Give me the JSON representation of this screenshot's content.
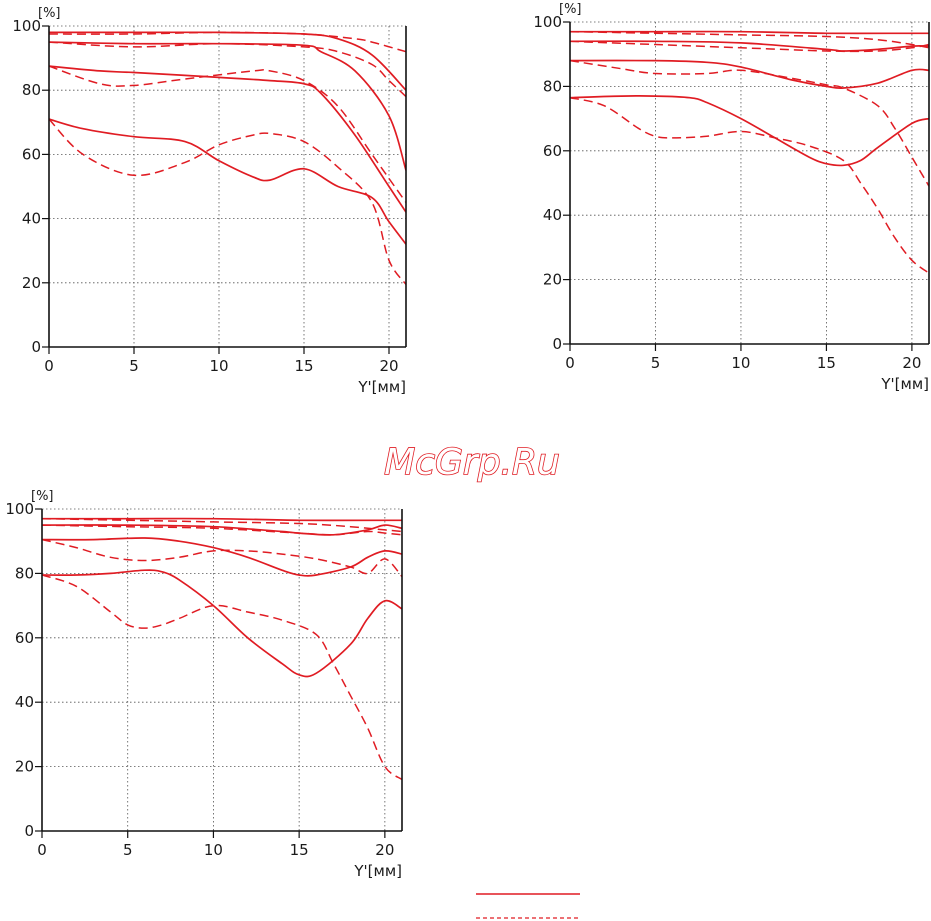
{
  "watermark": "McGrp.Ru",
  "colors": {
    "curve": "#e01c23",
    "axis": "#111111",
    "grid": "#555555"
  },
  "chart_data": [
    {
      "type": "line",
      "ylabel": "[%]",
      "xlabel": "Y'[мм]",
      "xlim": [
        0,
        21
      ],
      "ylim": [
        0,
        100
      ],
      "xticks": [
        0,
        5,
        10,
        15,
        20
      ],
      "yticks": [
        0,
        20,
        40,
        60,
        80,
        100
      ],
      "grid": true,
      "series": [
        {
          "style": "solid",
          "x": [
            0,
            5,
            10,
            15,
            17,
            19,
            21
          ],
          "y": [
            98,
            98,
            98,
            97.5,
            96,
            91,
            80
          ]
        },
        {
          "style": "dashed",
          "x": [
            0,
            5,
            10,
            15,
            18,
            19,
            21
          ],
          "y": [
            97.5,
            97.5,
            98,
            97.5,
            96,
            95,
            92
          ]
        },
        {
          "style": "solid",
          "x": [
            0,
            5,
            10,
            15,
            16,
            18,
            20,
            21
          ],
          "y": [
            95,
            94.5,
            94.5,
            94,
            92,
            86,
            72,
            55
          ]
        },
        {
          "style": "dashed",
          "x": [
            0,
            5,
            10,
            15,
            17,
            19,
            20,
            21
          ],
          "y": [
            95,
            93.5,
            94.5,
            93.5,
            92,
            88,
            83,
            78
          ]
        },
        {
          "style": "solid",
          "x": [
            0,
            3,
            5,
            10,
            13,
            15,
            16,
            18,
            20,
            21
          ],
          "y": [
            87.5,
            86,
            85.5,
            84,
            83,
            82,
            79,
            66,
            50,
            42
          ]
        },
        {
          "style": "dashed",
          "x": [
            0,
            3,
            5,
            8,
            12,
            13,
            15,
            17,
            19,
            21
          ],
          "y": [
            87.5,
            82,
            81.5,
            83.5,
            86,
            86,
            83,
            75,
            60,
            45
          ]
        },
        {
          "style": "solid",
          "x": [
            0,
            2,
            5,
            8,
            10,
            12,
            13,
            15,
            17,
            19,
            20,
            21
          ],
          "y": [
            71,
            68,
            65.5,
            64,
            58,
            53,
            52,
            55.5,
            50,
            46.5,
            39,
            32
          ]
        },
        {
          "style": "dashed",
          "x": [
            0,
            2,
            5,
            8,
            10,
            12,
            13,
            15,
            17,
            19,
            20,
            21
          ],
          "y": [
            71,
            60,
            53.5,
            57.5,
            63,
            66,
            66.5,
            64,
            56,
            45,
            27,
            19.5
          ]
        }
      ]
    },
    {
      "type": "line",
      "ylabel": "[%]",
      "xlabel": "Y'[мм]",
      "xlim": [
        0,
        21
      ],
      "ylim": [
        0,
        100
      ],
      "xticks": [
        0,
        5,
        10,
        15,
        20
      ],
      "yticks": [
        0,
        20,
        40,
        60,
        80,
        100
      ],
      "grid": true,
      "series": [
        {
          "style": "solid",
          "x": [
            0,
            5,
            10,
            15,
            20,
            21
          ],
          "y": [
            97,
            97,
            97,
            96.5,
            96.5,
            96.5
          ]
        },
        {
          "style": "dashed",
          "x": [
            0,
            5,
            10,
            15,
            18,
            20,
            21
          ],
          "y": [
            97,
            96.5,
            96,
            95.5,
            94.5,
            93,
            92
          ]
        },
        {
          "style": "solid",
          "x": [
            0,
            5,
            10,
            15,
            16,
            18,
            20,
            21
          ],
          "y": [
            94,
            94,
            93.5,
            91.5,
            91,
            91.5,
            92.5,
            92.5
          ]
        },
        {
          "style": "dashed",
          "x": [
            0,
            5,
            10,
            15,
            18,
            20,
            21
          ],
          "y": [
            94,
            93,
            92,
            91,
            91,
            92,
            93
          ]
        },
        {
          "style": "solid",
          "x": [
            0,
            5,
            8,
            10,
            13,
            15,
            16,
            18,
            20,
            21
          ],
          "y": [
            88,
            88,
            87.5,
            86,
            82,
            80,
            79.5,
            81,
            85,
            85
          ]
        },
        {
          "style": "dashed",
          "x": [
            0,
            3,
            5,
            8,
            10,
            13,
            15,
            16,
            18,
            19,
            20,
            21
          ],
          "y": [
            88,
            85.5,
            84,
            84,
            85,
            82.5,
            80.5,
            79.5,
            74,
            67,
            58,
            49
          ]
        },
        {
          "style": "solid",
          "x": [
            0,
            3,
            5,
            7,
            8,
            10,
            12,
            14,
            15,
            16,
            17,
            18,
            20,
            21
          ],
          "y": [
            76.5,
            77,
            77,
            76.5,
            75,
            70,
            64,
            58,
            56,
            55.5,
            57,
            61,
            68.5,
            70
          ]
        },
        {
          "style": "dashed",
          "x": [
            0,
            2,
            4,
            5,
            6,
            8,
            10,
            12,
            14,
            16,
            17,
            18,
            19,
            20,
            21
          ],
          "y": [
            76.5,
            74,
            67,
            64.5,
            64,
            64.5,
            66,
            64,
            61.5,
            57,
            50,
            42,
            33,
            26,
            22
          ]
        }
      ]
    },
    {
      "type": "line",
      "ylabel": "[%]",
      "xlabel": "Y'[мм]",
      "xlim": [
        0,
        21
      ],
      "ylim": [
        0,
        100
      ],
      "xticks": [
        0,
        5,
        10,
        15,
        20
      ],
      "yticks": [
        0,
        20,
        40,
        60,
        80,
        100
      ],
      "grid": true,
      "series": [
        {
          "style": "solid",
          "x": [
            0,
            5,
            10,
            15,
            20,
            21
          ],
          "y": [
            97,
            97,
            97,
            96.5,
            96.5,
            96.5
          ]
        },
        {
          "style": "dashed",
          "x": [
            0,
            5,
            10,
            15,
            18,
            20,
            21
          ],
          "y": [
            97,
            96.5,
            96,
            95.5,
            94.5,
            93.5,
            93
          ]
        },
        {
          "style": "solid",
          "x": [
            0,
            5,
            10,
            14,
            15,
            17,
            19,
            20,
            21
          ],
          "y": [
            95,
            95,
            94.5,
            93,
            92.5,
            92,
            93.5,
            95,
            94
          ]
        },
        {
          "style": "dashed",
          "x": [
            0,
            5,
            10,
            15,
            17,
            19,
            20,
            21
          ],
          "y": [
            95,
            94.5,
            94,
            92.5,
            92,
            93,
            92.5,
            92
          ]
        },
        {
          "style": "solid",
          "x": [
            0,
            3,
            6,
            8,
            10,
            12,
            14,
            15,
            16,
            18,
            19,
            20,
            21
          ],
          "y": [
            90.5,
            90.5,
            91,
            90,
            88,
            85,
            81,
            79.5,
            79.5,
            82,
            85,
            87,
            86
          ]
        },
        {
          "style": "dashed",
          "x": [
            0,
            2,
            4,
            6,
            8,
            10,
            12,
            14,
            16,
            18,
            19,
            20,
            21
          ],
          "y": [
            90.5,
            88,
            85,
            84,
            85,
            87,
            87,
            86,
            84.5,
            82,
            80,
            84.5,
            79
          ]
        },
        {
          "style": "solid",
          "x": [
            0,
            2,
            4,
            6,
            7,
            8,
            10,
            12,
            14,
            15,
            16,
            18,
            19,
            20,
            21
          ],
          "y": [
            79.5,
            79.5,
            80,
            81,
            80.5,
            78,
            70,
            60,
            52,
            48.5,
            49,
            58,
            66,
            71.5,
            69
          ]
        },
        {
          "style": "dashed",
          "x": [
            0,
            2,
            4,
            5,
            6,
            7,
            8,
            10,
            12,
            14,
            16,
            17,
            18,
            19,
            20,
            21
          ],
          "y": [
            79.5,
            76,
            68,
            64,
            63,
            64,
            66,
            70,
            68,
            65.5,
            61,
            52,
            42,
            32,
            20,
            16
          ]
        }
      ]
    }
  ]
}
